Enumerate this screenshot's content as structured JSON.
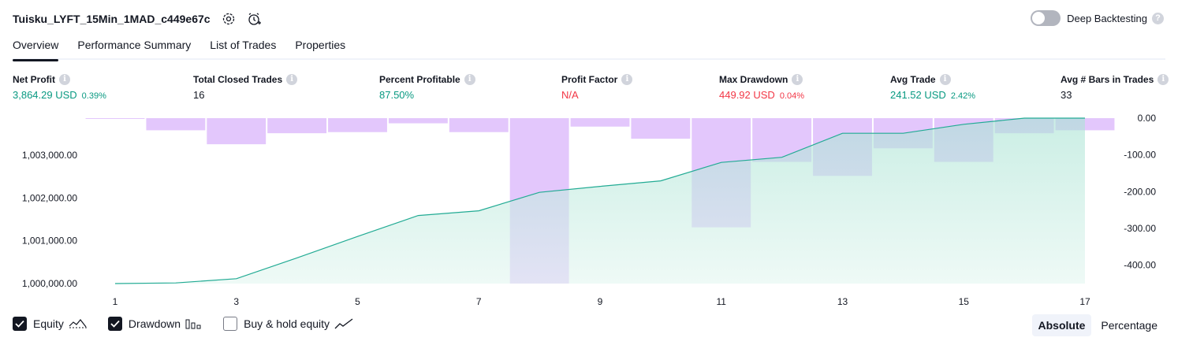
{
  "header": {
    "strategy_name": "Tuisku_LYFT_15Min_1MAD_c449e67c",
    "deep_backtesting_label": "Deep Backtesting",
    "help_glyph": "?"
  },
  "tabs": [
    {
      "label": "Overview",
      "active": true
    },
    {
      "label": "Performance Summary",
      "active": false
    },
    {
      "label": "List of Trades",
      "active": false
    },
    {
      "label": "Properties",
      "active": false
    }
  ],
  "metrics": [
    {
      "label": "Net Profit",
      "value": "3,864.29 USD",
      "pct": "0.39%",
      "color": "green"
    },
    {
      "label": "Total Closed Trades",
      "value": "16",
      "pct": "",
      "color": "dark"
    },
    {
      "label": "Percent Profitable",
      "value": "87.50%",
      "pct": "",
      "color": "green"
    },
    {
      "label": "Profit Factor",
      "value": "N/A",
      "pct": "",
      "color": "red"
    },
    {
      "label": "Max Drawdown",
      "value": "449.92 USD",
      "pct": "0.04%",
      "color": "red"
    },
    {
      "label": "Avg Trade",
      "value": "241.52 USD",
      "pct": "2.42%",
      "color": "green"
    },
    {
      "label": "Avg # Bars in Trades",
      "value": "33",
      "pct": "",
      "color": "dark"
    }
  ],
  "colors": {
    "equity_line": "#22ab94",
    "equity_fill": "#d6f2ea",
    "drawdown_bar": "#e1c4fc",
    "positive": "#089981",
    "negative": "#f23645"
  },
  "chart_data": {
    "type": "area",
    "x_ticks": [
      "1",
      "3",
      "5",
      "7",
      "9",
      "11",
      "13",
      "15",
      "17"
    ],
    "y_left_ticks": [
      "1,003,000.00",
      "1,002,000.00",
      "1,001,000.00",
      "1,000,000.00"
    ],
    "y_right_ticks": [
      "0.00",
      "-100.00",
      "-200.00",
      "-300.00",
      "-400.00"
    ],
    "ylim_left": [
      1000000,
      1003864
    ],
    "ylim_right": [
      -450,
      0
    ],
    "series": [
      {
        "type": "line",
        "x": [
          1,
          2,
          3,
          4,
          5,
          6,
          7,
          8,
          9,
          10,
          11,
          12,
          13,
          14,
          15,
          16,
          17
        ],
        "values": [
          1000000,
          1000015,
          1000115,
          1000600,
          1001100,
          1001590,
          1001700,
          1002130,
          1002270,
          1002400,
          1002830,
          1002950,
          1003510,
          1003510,
          1003720,
          1003864,
          1003864
        ]
      },
      {
        "type": "bar",
        "x": [
          1,
          2,
          3,
          4,
          5,
          6,
          7,
          8,
          9,
          10,
          11,
          12,
          13,
          14,
          15,
          16,
          17
        ],
        "values": [
          -2,
          -33,
          -71,
          -41,
          -38,
          -14,
          -38,
          -450,
          -23,
          -56,
          -297,
          -119,
          -157,
          -82,
          -119,
          -41,
          -33
        ]
      }
    ]
  },
  "footer": {
    "equity_label": "Equity",
    "drawdown_label": "Drawdown",
    "buy_hold_label": "Buy & hold equity",
    "absolute_label": "Absolute",
    "percentage_label": "Percentage"
  }
}
